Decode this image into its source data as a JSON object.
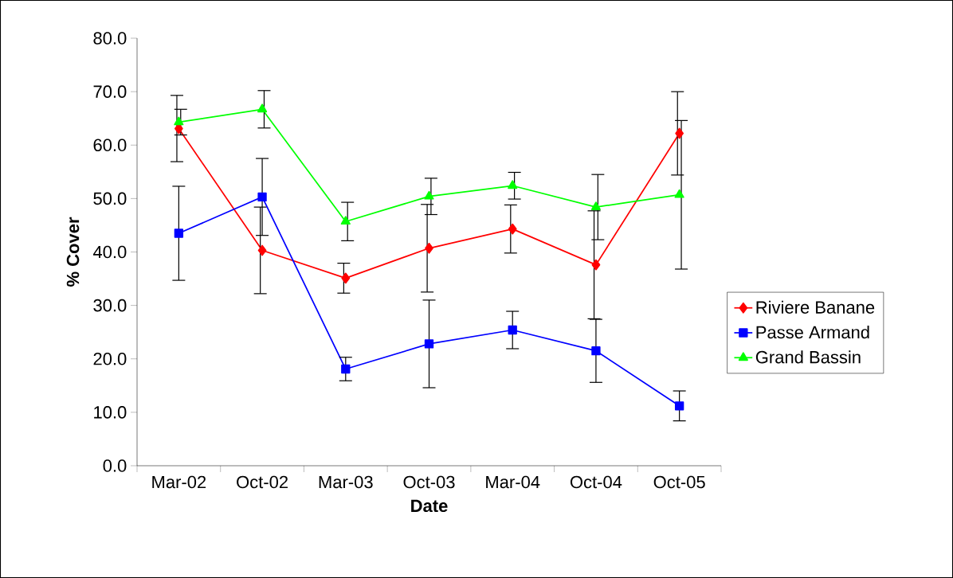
{
  "chart_data": {
    "type": "line",
    "xlabel": "Date",
    "ylabel": "% Cover",
    "legend": "right",
    "categories": [
      "Mar-02",
      "Oct-02",
      "Mar-03",
      "Oct-03",
      "Mar-04",
      "Oct-04",
      "Oct-05"
    ],
    "ylim": [
      0,
      80
    ],
    "yticks": [
      {
        "value": 0,
        "label": "0.0"
      },
      {
        "value": 10,
        "label": "10.0"
      },
      {
        "value": 20,
        "label": "20.0"
      },
      {
        "value": 30,
        "label": "30.0"
      },
      {
        "value": 40,
        "label": "40.0"
      },
      {
        "value": 50,
        "label": "50.0"
      },
      {
        "value": 60,
        "label": "60.0"
      },
      {
        "value": 70,
        "label": "70.0"
      },
      {
        "value": 80,
        "label": "80.0"
      }
    ],
    "series": [
      {
        "name": "Riviere Banane",
        "color": "#ff0000",
        "marker": "diamond",
        "values": [
          63.1,
          40.3,
          35.1,
          40.7,
          44.3,
          37.6,
          62.2
        ],
        "errors": [
          6.2,
          8.1,
          2.8,
          8.2,
          4.5,
          10.1,
          7.8
        ]
      },
      {
        "name": "Passe Armand",
        "color": "#0000ff",
        "marker": "square",
        "values": [
          43.5,
          50.3,
          18.1,
          22.8,
          25.4,
          21.5,
          11.2
        ],
        "errors": [
          8.8,
          7.2,
          2.2,
          8.2,
          3.5,
          5.9,
          2.8
        ]
      },
      {
        "name": "Grand Bassin",
        "color": "#00ff00",
        "marker": "triangle",
        "values": [
          64.3,
          66.7,
          45.7,
          50.4,
          52.4,
          48.4,
          50.7
        ],
        "errors": [
          2.4,
          3.5,
          3.6,
          3.4,
          2.5,
          6.1,
          13.9
        ]
      }
    ]
  }
}
